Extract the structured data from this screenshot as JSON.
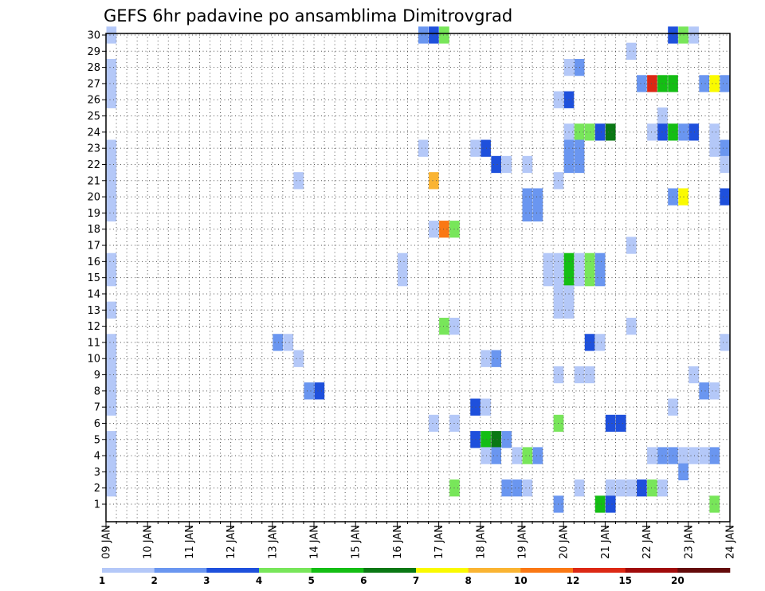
{
  "chart_data": {
    "type": "heatmap",
    "title": "GEFS 6hr padavine po ansamblima Dimitrovgrad",
    "y_labels": [
      "1",
      "2",
      "3",
      "4",
      "5",
      "6",
      "7",
      "8",
      "9",
      "10",
      "11",
      "12",
      "13",
      "14",
      "15",
      "16",
      "17",
      "18",
      "19",
      "20",
      "21",
      "22",
      "23",
      "24",
      "25",
      "26",
      "27",
      "28",
      "29",
      "30"
    ],
    "y_range": [
      1,
      30
    ],
    "x_labels": [
      "09 JAN",
      "10 JAN",
      "11 JAN",
      "12 JAN",
      "13 JAN",
      "14 JAN",
      "15 JAN",
      "16 JAN",
      "17 JAN",
      "18 JAN",
      "19 JAN",
      "20 JAN",
      "21 JAN",
      "22 JAN",
      "23 JAN",
      "24 JAN"
    ],
    "time_step": "6hr",
    "steps_per_day": 4,
    "x_range_steps": [
      0,
      60
    ],
    "grid": "dotted",
    "colorbar": {
      "position": "bottom",
      "labels": [
        "1",
        "2",
        "3",
        "4",
        "5",
        "6",
        "7",
        "8",
        "10",
        "12",
        "15",
        "20"
      ],
      "colors": [
        "#b4c8f8",
        "#6a96f0",
        "#1e50dc",
        "#78e65a",
        "#14be14",
        "#0a7814",
        "#fafa00",
        "#fab432",
        "#fa7814",
        "#dc2814",
        "#a00a0a",
        "#640a0a"
      ]
    },
    "cells": [
      [
        30,
        0,
        1
      ],
      [
        30,
        30,
        2
      ],
      [
        30,
        31,
        3
      ],
      [
        30,
        32,
        4
      ],
      [
        30,
        54,
        3
      ],
      [
        30,
        55,
        4
      ],
      [
        30,
        56,
        1
      ],
      [
        29,
        50,
        1
      ],
      [
        28,
        0,
        1
      ],
      [
        28,
        44,
        1
      ],
      [
        28,
        45,
        2
      ],
      [
        27,
        0,
        1
      ],
      [
        27,
        51,
        2
      ],
      [
        27,
        52,
        10
      ],
      [
        27,
        53,
        5
      ],
      [
        27,
        54,
        5
      ],
      [
        27,
        57,
        2
      ],
      [
        27,
        58,
        7
      ],
      [
        27,
        59,
        2
      ],
      [
        26,
        0,
        1
      ],
      [
        26,
        43,
        1
      ],
      [
        26,
        44,
        3
      ],
      [
        25,
        53,
        1
      ],
      [
        24,
        44,
        1
      ],
      [
        24,
        45,
        4
      ],
      [
        24,
        46,
        4
      ],
      [
        24,
        47,
        3
      ],
      [
        24,
        48,
        6
      ],
      [
        24,
        52,
        1
      ],
      [
        24,
        53,
        3
      ],
      [
        24,
        54,
        5
      ],
      [
        24,
        55,
        2
      ],
      [
        24,
        56,
        3
      ],
      [
        24,
        58,
        1
      ],
      [
        23,
        0,
        1
      ],
      [
        23,
        30,
        1
      ],
      [
        23,
        35,
        1
      ],
      [
        23,
        36,
        3
      ],
      [
        23,
        44,
        2
      ],
      [
        23,
        45,
        2
      ],
      [
        23,
        58,
        1
      ],
      [
        23,
        59,
        2
      ],
      [
        22,
        0,
        1
      ],
      [
        22,
        37,
        3
      ],
      [
        22,
        38,
        1
      ],
      [
        22,
        40,
        1
      ],
      [
        22,
        44,
        2
      ],
      [
        22,
        45,
        2
      ],
      [
        22,
        59,
        1
      ],
      [
        21,
        0,
        1
      ],
      [
        21,
        18,
        1
      ],
      [
        21,
        31,
        8
      ],
      [
        21,
        43,
        1
      ],
      [
        20,
        0,
        1
      ],
      [
        20,
        40,
        2
      ],
      [
        20,
        41,
        2
      ],
      [
        20,
        54,
        2
      ],
      [
        20,
        55,
        7
      ],
      [
        20,
        59,
        3
      ],
      [
        19,
        0,
        1
      ],
      [
        19,
        40,
        2
      ],
      [
        19,
        41,
        2
      ],
      [
        18,
        31,
        1
      ],
      [
        18,
        32,
        9
      ],
      [
        18,
        33,
        4
      ],
      [
        17,
        50,
        1
      ],
      [
        16,
        0,
        1
      ],
      [
        16,
        28,
        1
      ],
      [
        16,
        42,
        1
      ],
      [
        16,
        43,
        1
      ],
      [
        16,
        44,
        5
      ],
      [
        16,
        45,
        1
      ],
      [
        16,
        46,
        4
      ],
      [
        16,
        47,
        2
      ],
      [
        15,
        0,
        1
      ],
      [
        15,
        28,
        1
      ],
      [
        15,
        42,
        1
      ],
      [
        15,
        43,
        1
      ],
      [
        15,
        44,
        5
      ],
      [
        15,
        45,
        1
      ],
      [
        15,
        46,
        4
      ],
      [
        15,
        47,
        2
      ],
      [
        14,
        43,
        1
      ],
      [
        14,
        44,
        1
      ],
      [
        13,
        0,
        1
      ],
      [
        13,
        43,
        1
      ],
      [
        13,
        44,
        1
      ],
      [
        12,
        32,
        4
      ],
      [
        12,
        33,
        1
      ],
      [
        12,
        50,
        1
      ],
      [
        11,
        0,
        1
      ],
      [
        11,
        16,
        2
      ],
      [
        11,
        17,
        1
      ],
      [
        11,
        46,
        3
      ],
      [
        11,
        47,
        1
      ],
      [
        11,
        59,
        1
      ],
      [
        10,
        0,
        1
      ],
      [
        10,
        18,
        1
      ],
      [
        10,
        36,
        1
      ],
      [
        10,
        37,
        2
      ],
      [
        9,
        0,
        1
      ],
      [
        9,
        43,
        1
      ],
      [
        9,
        45,
        1
      ],
      [
        9,
        46,
        1
      ],
      [
        9,
        56,
        1
      ],
      [
        8,
        0,
        1
      ],
      [
        8,
        19,
        2
      ],
      [
        8,
        20,
        3
      ],
      [
        8,
        57,
        2
      ],
      [
        8,
        58,
        1
      ],
      [
        7,
        0,
        1
      ],
      [
        7,
        35,
        3
      ],
      [
        7,
        36,
        1
      ],
      [
        7,
        54,
        1
      ],
      [
        6,
        31,
        1
      ],
      [
        6,
        33,
        1
      ],
      [
        6,
        43,
        4
      ],
      [
        6,
        48,
        3
      ],
      [
        6,
        49,
        3
      ],
      [
        5,
        0,
        1
      ],
      [
        5,
        35,
        3
      ],
      [
        5,
        36,
        5
      ],
      [
        5,
        37,
        6
      ],
      [
        5,
        38,
        2
      ],
      [
        4,
        0,
        1
      ],
      [
        4,
        36,
        1
      ],
      [
        4,
        37,
        2
      ],
      [
        4,
        39,
        1
      ],
      [
        4,
        40,
        4
      ],
      [
        4,
        41,
        2
      ],
      [
        4,
        52,
        1
      ],
      [
        4,
        53,
        2
      ],
      [
        4,
        54,
        2
      ],
      [
        4,
        55,
        1
      ],
      [
        4,
        56,
        1
      ],
      [
        4,
        57,
        1
      ],
      [
        4,
        58,
        2
      ],
      [
        3,
        0,
        1
      ],
      [
        3,
        55,
        2
      ],
      [
        2,
        0,
        1
      ],
      [
        2,
        33,
        4
      ],
      [
        2,
        38,
        2
      ],
      [
        2,
        39,
        2
      ],
      [
        2,
        40,
        1
      ],
      [
        2,
        45,
        1
      ],
      [
        2,
        48,
        1
      ],
      [
        2,
        49,
        1
      ],
      [
        2,
        50,
        1
      ],
      [
        2,
        51,
        3
      ],
      [
        2,
        52,
        4
      ],
      [
        2,
        53,
        1
      ],
      [
        1,
        43,
        2
      ],
      [
        1,
        47,
        5
      ],
      [
        1,
        48,
        3
      ],
      [
        1,
        58,
        4
      ]
    ]
  }
}
